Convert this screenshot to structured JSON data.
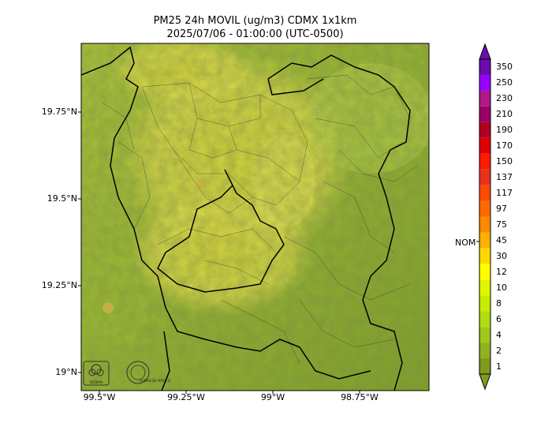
{
  "title_line1": "PM25 24h MOVIL (ug/m3) CDMX 1x1km",
  "title_line2": "2025/07/06 - 01:00:00 (UTC-0500)",
  "lat_labels": [
    "19.75°N",
    "19.5°N",
    "19.25°N",
    "19°N"
  ],
  "lon_labels": [
    "99.5°W",
    "99.25°W",
    "99°W",
    "98.75°W"
  ],
  "colorbar": {
    "labels": [
      "1",
      "2",
      "4",
      "6",
      "8",
      "10",
      "12",
      "30",
      "45",
      "75",
      "97",
      "117",
      "137",
      "150",
      "170",
      "190",
      "210",
      "230",
      "250",
      "350"
    ],
    "colors": [
      "#7f9a1c",
      "#8fb21e",
      "#9fc81a",
      "#b2dc10",
      "#c6ec00",
      "#e0f500",
      "#ffff00",
      "#ffd800",
      "#ffb000",
      "#ff8a00",
      "#ff6a00",
      "#ff4a00",
      "#e8321e",
      "#ff1a00",
      "#e00000",
      "#b00020",
      "#990066",
      "#b0188a",
      "#9900ff",
      "#6a0dad"
    ],
    "reference_label": "NOM"
  },
  "logos": {
    "logo1": "SEDEMA",
    "logo2": "CIUDAD DE MÉXICO"
  }
}
